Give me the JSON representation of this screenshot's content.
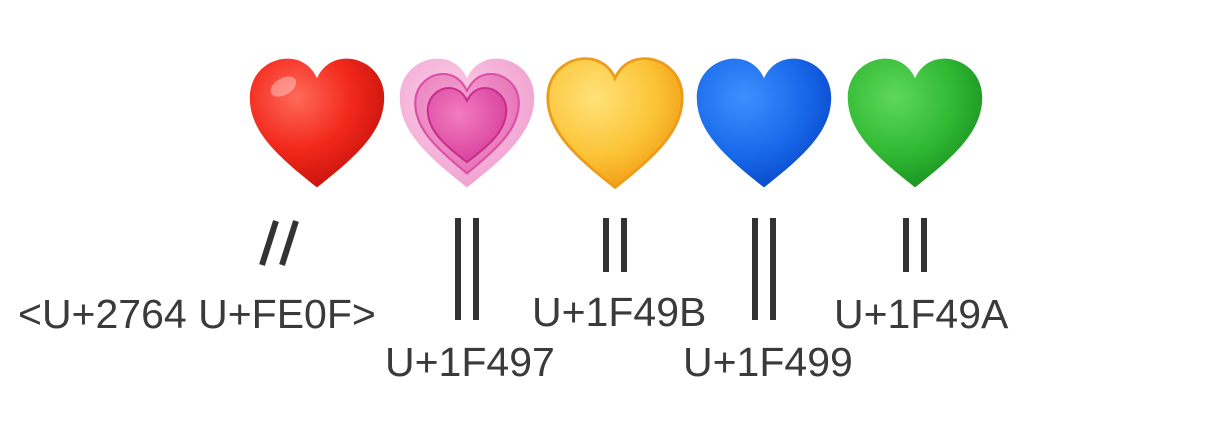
{
  "hearts": [
    {
      "icon": "red-heart-icon",
      "color": "#e8251c",
      "code": "<U+2764 U+FE0F>",
      "separator": "//"
    },
    {
      "icon": "growing-heart-icon",
      "color": "#e74fa6",
      "code": "U+1F497",
      "separator": "||"
    },
    {
      "icon": "yellow-heart-icon",
      "color": "#fbc436",
      "code": "U+1F49B",
      "separator": "||"
    },
    {
      "icon": "blue-heart-icon",
      "color": "#1766e6",
      "code": "U+1F499",
      "separator": "||"
    },
    {
      "icon": "green-heart-icon",
      "color": "#2db732",
      "code": "U+1F49A",
      "separator": "||"
    }
  ]
}
